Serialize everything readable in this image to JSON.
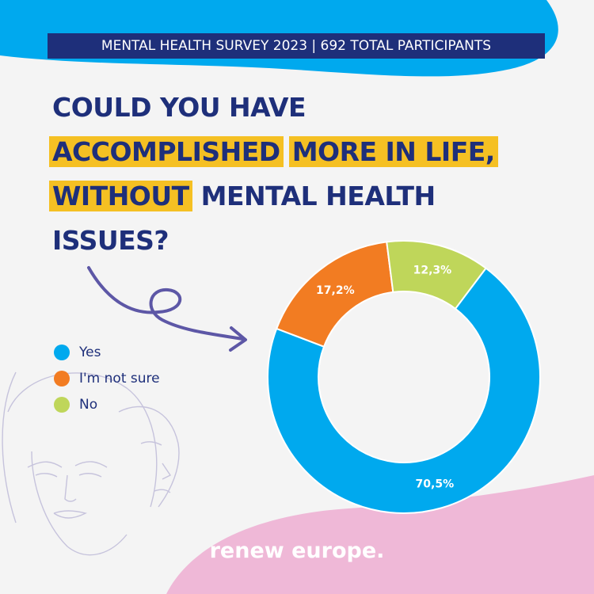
{
  "banner": "MENTAL HEALTH SURVEY 2023 | 692 TOTAL PARTICIPANTS",
  "headline": {
    "line1": "COULD YOU HAVE",
    "line2a": "ACCOMPLISHED",
    "line2b": "MORE IN LIFE,",
    "line3a": "WITHOUT",
    "line3b": "MENTAL HEALTH",
    "line4": "ISSUES?"
  },
  "brand": "renew europe.",
  "colors": {
    "yes": "#00a9ee",
    "unsure": "#f27c22",
    "no": "#bfd65a",
    "navy": "#1e2f7a",
    "highlight": "#f5c023"
  },
  "chart_data": {
    "type": "pie",
    "donut": true,
    "legend_position": "left",
    "series": [
      {
        "name": "Yes",
        "value": 70.5,
        "label": "70,5%",
        "color": "#00a9ee"
      },
      {
        "name": "I'm not sure",
        "value": 17.2,
        "label": "17,2%",
        "color": "#f27c22"
      },
      {
        "name": "No",
        "value": 12.3,
        "label": "12,3%",
        "color": "#bfd65a"
      }
    ]
  }
}
